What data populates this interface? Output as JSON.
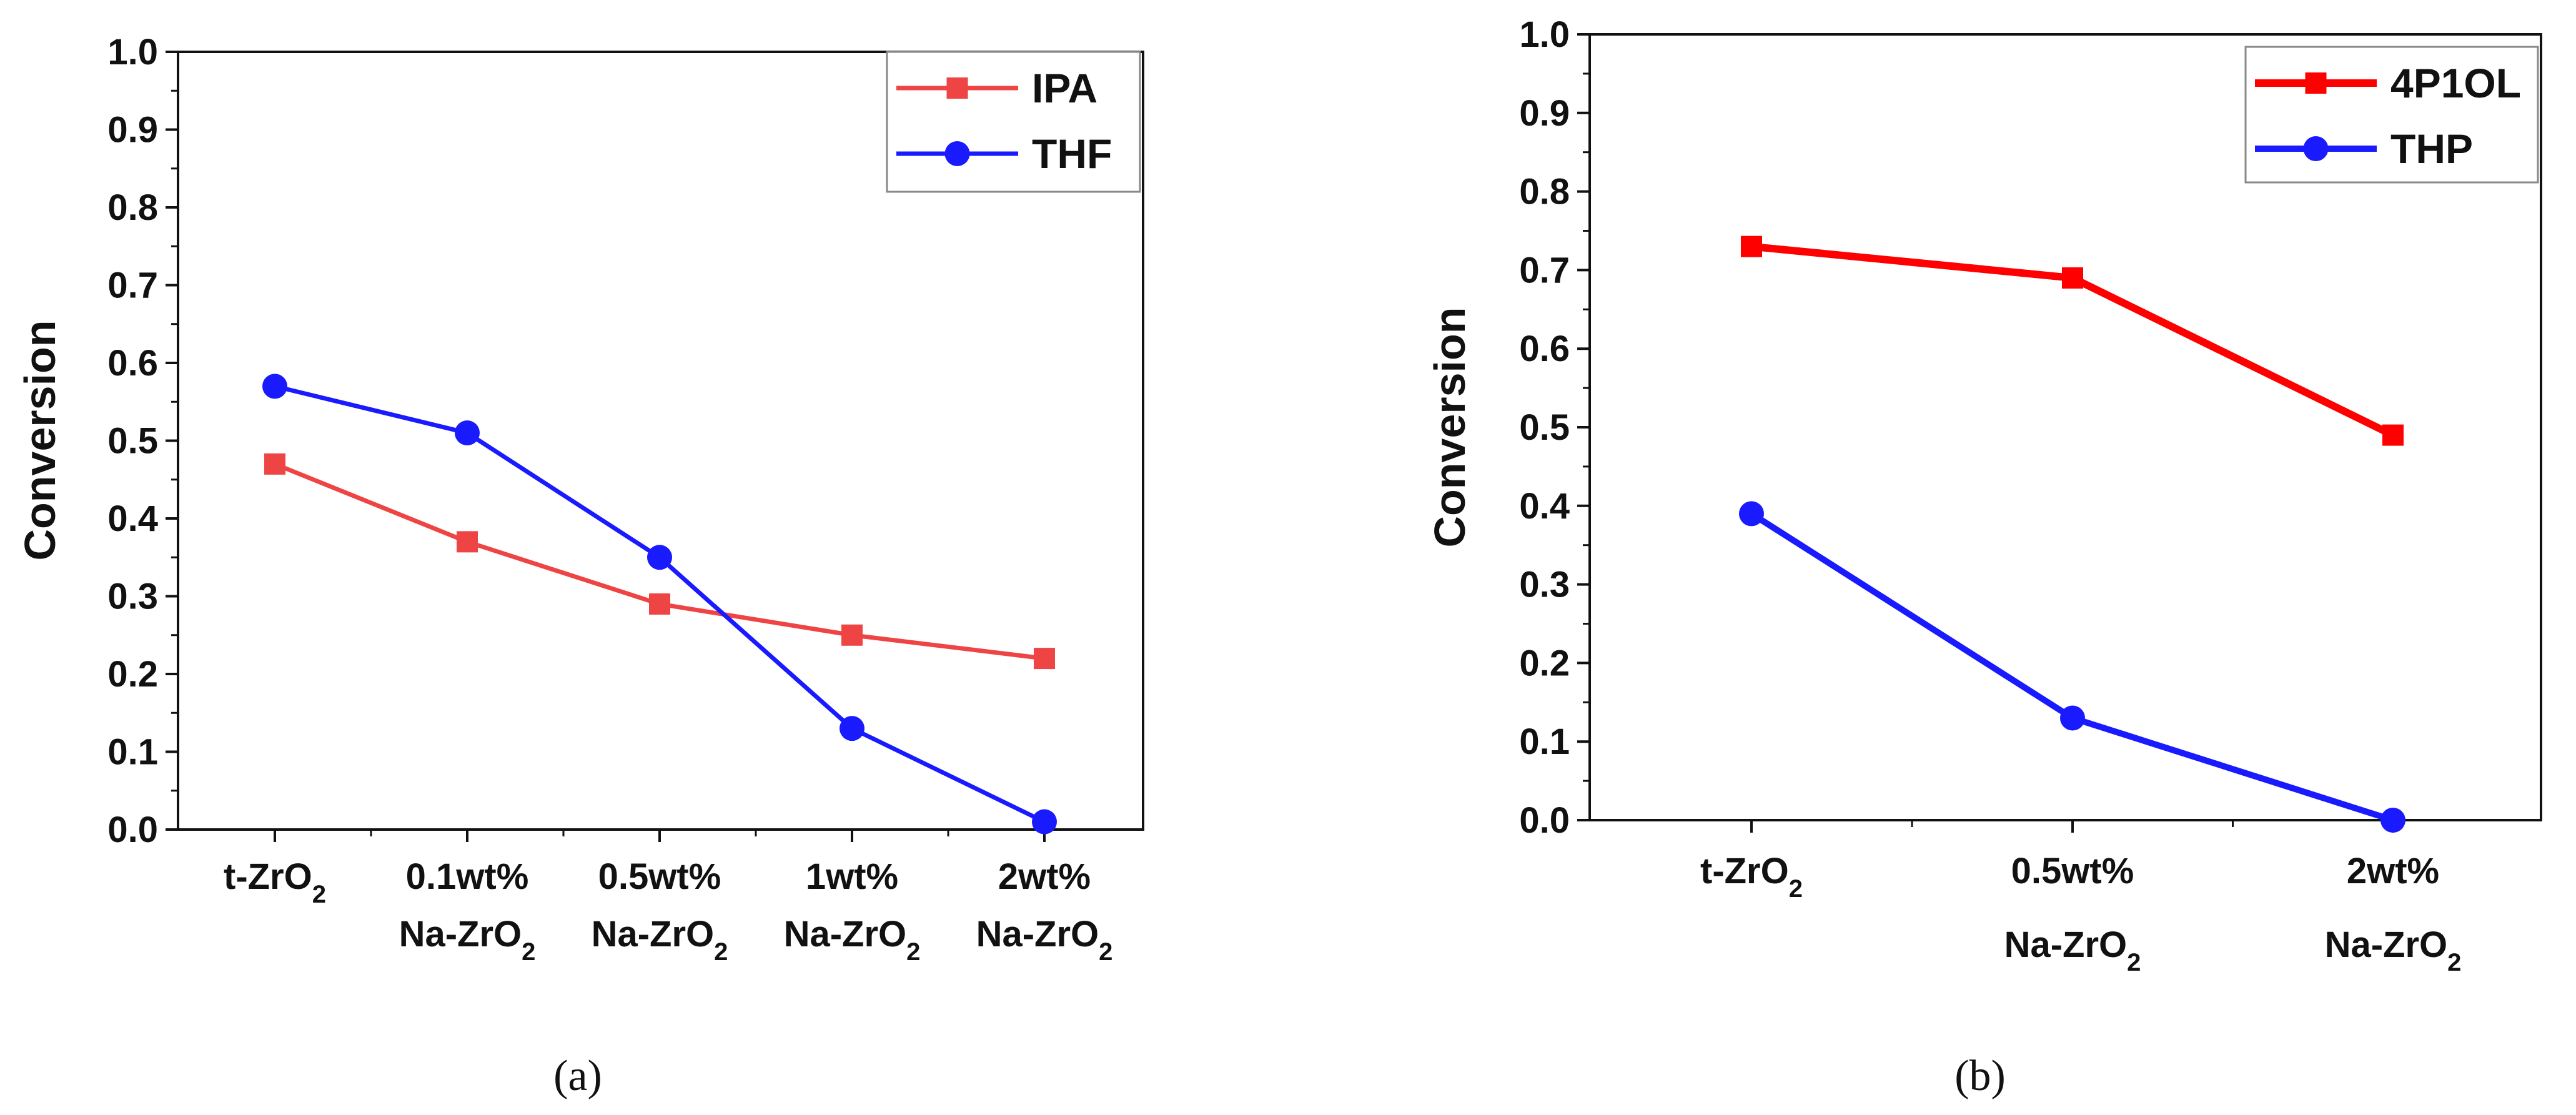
{
  "colors": {
    "panel_a_series_1": "#ee4444",
    "panel_a_series_2": "#1a1aff",
    "panel_b_series_1": "#ff0000",
    "panel_b_series_2": "#1a1aff",
    "axis": "#111111"
  },
  "chart_data": [
    {
      "type": "line",
      "caption": "(a)",
      "title": "",
      "xlabel": "",
      "ylabel": "Conversion",
      "ylim": [
        0,
        1.0
      ],
      "yticks": [
        "0.0",
        "0.1",
        "0.2",
        "0.3",
        "0.4",
        "0.5",
        "0.6",
        "0.7",
        "0.8",
        "0.9",
        "1.0"
      ],
      "grid": false,
      "legend_position": "top-right",
      "categories": [
        {
          "line1": "t-ZrO",
          "sub1": "2",
          "line2": "",
          "sub2": ""
        },
        {
          "line1": "0.1wt%",
          "sub1": "",
          "line2": "Na-ZrO",
          "sub2": "2"
        },
        {
          "line1": "0.5wt%",
          "sub1": "",
          "line2": "Na-ZrO",
          "sub2": "2"
        },
        {
          "line1": "1wt%",
          "sub1": "",
          "line2": "Na-ZrO",
          "sub2": "2"
        },
        {
          "line1": "2wt%",
          "sub1": "",
          "line2": "Na-ZrO",
          "sub2": "2"
        }
      ],
      "series": [
        {
          "name": "IPA",
          "marker": "square",
          "values": [
            0.47,
            0.37,
            0.29,
            0.25,
            0.22
          ]
        },
        {
          "name": "THF",
          "marker": "circle",
          "values": [
            0.57,
            0.51,
            0.35,
            0.13,
            0.01
          ]
        }
      ]
    },
    {
      "type": "line",
      "caption": "(b)",
      "title": "",
      "xlabel": "",
      "ylabel": "Conversion",
      "ylim": [
        0,
        1.0
      ],
      "yticks": [
        "0.0",
        "0.1",
        "0.2",
        "0.3",
        "0.4",
        "0.5",
        "0.6",
        "0.7",
        "0.8",
        "0.9",
        "1.0"
      ],
      "grid": false,
      "legend_position": "top-right",
      "categories": [
        {
          "line1": "t-ZrO",
          "sub1": "2",
          "line2": "",
          "sub2": ""
        },
        {
          "line1": "0.5wt%",
          "sub1": "",
          "line2": "Na-ZrO",
          "sub2": "2"
        },
        {
          "line1": "2wt%",
          "sub1": "",
          "line2": "Na-ZrO",
          "sub2": "2"
        }
      ],
      "series": [
        {
          "name": "4P1OL",
          "marker": "square",
          "values": [
            0.73,
            0.69,
            0.49
          ]
        },
        {
          "name": "THP",
          "marker": "circle",
          "values": [
            0.39,
            0.13,
            0.0
          ]
        }
      ]
    }
  ]
}
